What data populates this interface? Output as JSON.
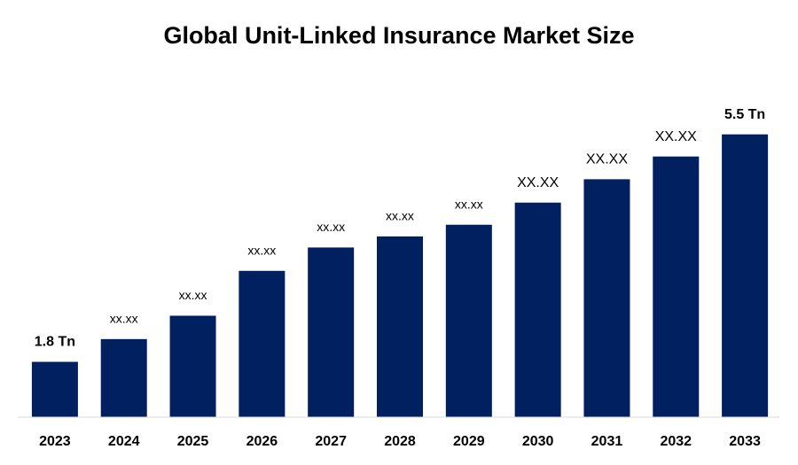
{
  "chart_data": {
    "type": "bar",
    "title": "Global Unit-Linked Insurance Market Size",
    "categories": [
      "2023",
      "2024",
      "2025",
      "2026",
      "2027",
      "2028",
      "2029",
      "2030",
      "2031",
      "2032",
      "2033"
    ],
    "values": [
      1.8,
      2.17,
      2.55,
      3.28,
      3.66,
      3.84,
      4.03,
      4.39,
      4.77,
      5.14,
      5.5
    ],
    "value_labels": [
      "1.8 Tn",
      "xx.xx",
      "xx.xx",
      "xx.xx",
      "xx.xx",
      "xx.xx",
      "xx.xx",
      "XX.XX",
      "XX.XX",
      "XX.XX",
      "5.5 Tn"
    ],
    "color": "#002060",
    "ylim": [
      0.9,
      6.0
    ]
  }
}
